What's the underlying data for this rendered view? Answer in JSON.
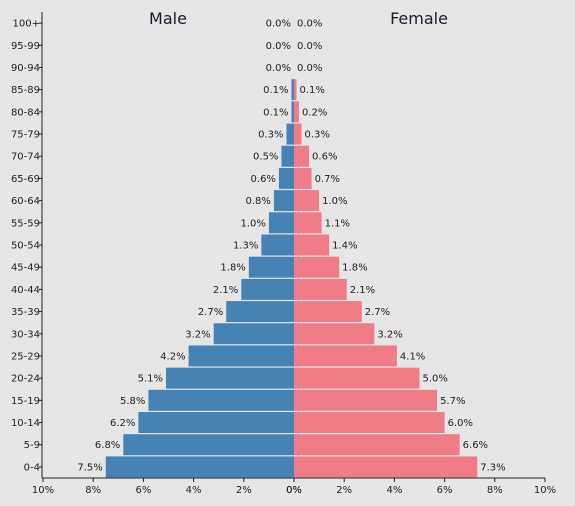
{
  "chart_data": {
    "type": "bar",
    "orientation": "horizontal",
    "subtype": "population-pyramid",
    "categories": [
      "100+",
      "95-99",
      "90-94",
      "85-89",
      "80-84",
      "75-79",
      "70-74",
      "65-69",
      "60-64",
      "55-59",
      "50-54",
      "45-49",
      "40-44",
      "35-39",
      "30-34",
      "25-29",
      "20-24",
      "15-19",
      "10-14",
      "5-9",
      "0-4"
    ],
    "series": [
      {
        "name": "Male",
        "color": "#4682b4",
        "values": [
          0.0,
          0.0,
          0.0,
          0.1,
          0.1,
          0.3,
          0.5,
          0.6,
          0.8,
          1.0,
          1.3,
          1.8,
          2.1,
          2.7,
          3.2,
          4.2,
          5.1,
          5.8,
          6.2,
          6.8,
          7.5
        ],
        "labels": [
          "0.0%",
          "0.0%",
          "0.0%",
          "0.1%",
          "0.1%",
          "0.3%",
          "0.5%",
          "0.6%",
          "0.8%",
          "1.0%",
          "1.3%",
          "1.8%",
          "2.1%",
          "2.7%",
          "3.2%",
          "4.2%",
          "5.1%",
          "5.8%",
          "6.2%",
          "6.8%",
          "7.5%"
        ]
      },
      {
        "name": "Female",
        "color": "#f07c88",
        "values": [
          0.0,
          0.0,
          0.0,
          0.1,
          0.2,
          0.3,
          0.6,
          0.7,
          1.0,
          1.1,
          1.4,
          1.8,
          2.1,
          2.7,
          3.2,
          4.1,
          5.0,
          5.7,
          6.0,
          6.6,
          7.3
        ],
        "labels": [
          "0.0%",
          "0.0%",
          "0.0%",
          "0.1%",
          "0.2%",
          "0.3%",
          "0.6%",
          "0.7%",
          "1.0%",
          "1.1%",
          "1.4%",
          "1.8%",
          "2.1%",
          "2.7%",
          "3.2%",
          "4.1%",
          "5.0%",
          "5.7%",
          "6.0%",
          "6.6%",
          "7.3%"
        ]
      }
    ],
    "x_ticks_left": [
      "10%",
      "8%",
      "6%",
      "4%",
      "2%",
      "0%"
    ],
    "x_ticks_right": [
      "0%",
      "2%",
      "4%",
      "6%",
      "8%",
      "10%"
    ],
    "xlim": [
      0,
      10
    ],
    "background": "#e6e6e6"
  }
}
